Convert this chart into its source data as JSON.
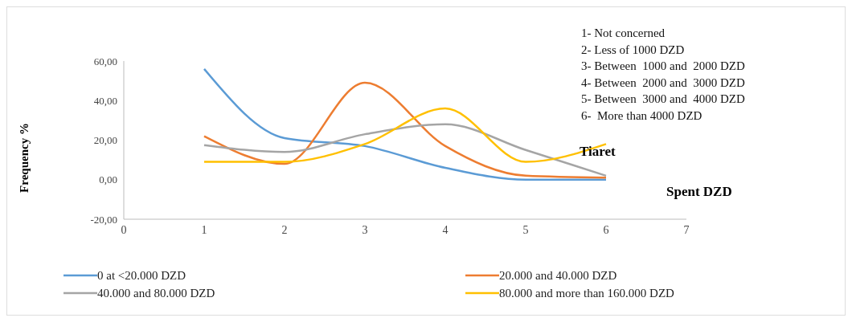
{
  "chart_data": {
    "type": "line",
    "xlabel": "Spent DZD",
    "ylabel": "Frequency %",
    "x": [
      1,
      2,
      3,
      4,
      5,
      6
    ],
    "series": [
      {
        "name": "0 at <20.000 DZD",
        "color": "#5b9bd5",
        "values": [
          56,
          21,
          17,
          6,
          0,
          0
        ]
      },
      {
        "name": "20.000 and 40.000 DZD",
        "color": "#ed7d31",
        "values": [
          22,
          8,
          49,
          17,
          2,
          1
        ]
      },
      {
        "name": "40.000 and 80.000 DZD",
        "color": "#a5a5a5",
        "values": [
          17.5,
          14,
          23,
          28,
          15,
          2
        ]
      },
      {
        "name": "80.000 and more than 160.000 DZD",
        "color": "#ffc000",
        "values": [
          9,
          9,
          18,
          36,
          9,
          18
        ]
      }
    ],
    "xlim": [
      0,
      7
    ],
    "xticks": [
      0,
      1,
      2,
      3,
      4,
      5,
      6,
      7
    ],
    "ylim": [
      -20,
      60
    ],
    "yticks": [
      {
        "value": -20,
        "label": "-20,00"
      },
      {
        "value": 0,
        "label": "0,00"
      },
      {
        "value": 20,
        "label": "20,00"
      },
      {
        "value": 40,
        "label": "40,00"
      },
      {
        "value": 60,
        "label": "60,00"
      }
    ],
    "annotations": [
      "1- Not concerned",
      "2- Less of 1000 DZD",
      "3- Between  1000 and  2000 DZD",
      "4- Between  2000 and  3000 DZD",
      "5- Between  3000 and  4000 DZD",
      "6-  More than 4000 DZD",
      "Tiaret"
    ],
    "grid": false,
    "legend": "bottom",
    "marker": "none",
    "line_style": "solid"
  }
}
